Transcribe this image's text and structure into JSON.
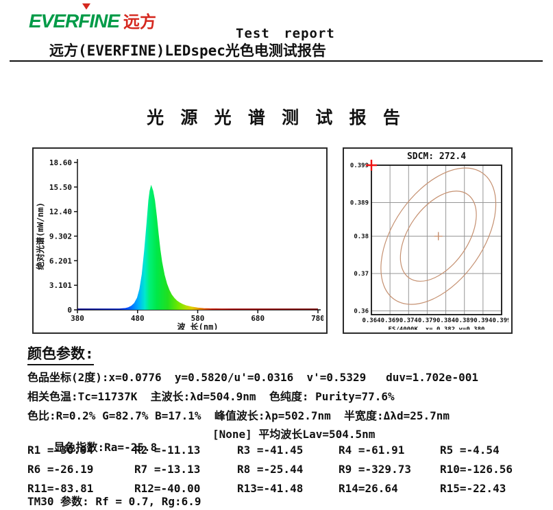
{
  "header": {
    "logo_en": "EVERFINE",
    "logo_cn": "远方",
    "test_report": "Test report",
    "subtitle": "远方(EVERFINE)LEDspec光色电测试报告"
  },
  "main_title": "光 源 光 谱 测 试 报 告",
  "chart_data": [
    {
      "type": "area",
      "title": "",
      "xlabel": "波 长(nm)",
      "ylabel": "绝对光谱(mW/nm)",
      "xlim": [
        380,
        780
      ],
      "ylim": [
        0,
        18.6
      ],
      "x_ticks": [
        "380",
        "480",
        "580",
        "680",
        "780"
      ],
      "y_ticks": [
        "0",
        "3.101",
        "6.201",
        "9.302",
        "12.40",
        "15.50",
        "18.60"
      ],
      "grid": "off",
      "peak": {
        "lambda_p_nm": 502.7,
        "value_mW_nm": 15.5,
        "fwhm_nm": 25.7
      },
      "series": [
        {
          "name": "绝对光谱",
          "x": [
            380,
            420,
            450,
            460,
            465,
            470,
            475,
            480,
            484,
            488,
            492,
            496,
            499,
            501,
            502.7,
            505,
            508,
            511,
            514,
            517,
            520,
            524,
            528,
            532,
            536,
            540,
            545,
            550,
            555,
            560,
            570,
            580,
            590,
            600,
            620,
            650,
            700,
            780
          ],
          "y": [
            0.05,
            0.05,
            0.08,
            0.15,
            0.25,
            0.45,
            0.8,
            1.5,
            2.6,
            4.5,
            7.5,
            11.0,
            13.8,
            15.0,
            15.5,
            15.0,
            13.8,
            11.8,
            9.6,
            7.6,
            6.0,
            4.4,
            3.3,
            2.5,
            1.9,
            1.5,
            1.1,
            0.85,
            0.65,
            0.5,
            0.32,
            0.2,
            0.13,
            0.1,
            0.07,
            0.06,
            0.05,
            0.04
          ]
        }
      ],
      "gradient": [
        {
          "at": 380,
          "c": "#000080"
        },
        {
          "at": 450,
          "c": "#0020C0"
        },
        {
          "at": 464,
          "c": "#0050FF"
        },
        {
          "at": 480,
          "c": "#00A8FF"
        },
        {
          "at": 492,
          "c": "#00E8D0"
        },
        {
          "at": 500,
          "c": "#00F078"
        },
        {
          "at": 512,
          "c": "#00E848"
        },
        {
          "at": 530,
          "c": "#20E020"
        },
        {
          "at": 548,
          "c": "#70E800"
        },
        {
          "at": 560,
          "c": "#B0E000"
        },
        {
          "at": 570,
          "c": "#E0D000"
        },
        {
          "at": 580,
          "c": "#E8A000"
        },
        {
          "at": 592,
          "c": "#E05000"
        },
        {
          "at": 604,
          "c": "#C81800"
        },
        {
          "at": 640,
          "c": "#A00000"
        },
        {
          "at": 780,
          "c": "#700000"
        }
      ]
    },
    {
      "type": "scatter",
      "title": "SDCM: 272.4",
      "footer": "ES/4000K, x= 0.382 y=0.380",
      "xlim": [
        0.364,
        0.399
      ],
      "ylim": [
        0.359,
        0.399
      ],
      "x_ticks": [
        "0.364",
        "0.369",
        "0.374",
        "0.379",
        "0.384",
        "0.389",
        "0.394",
        "0.399"
      ],
      "y_ticks": [
        "0.399",
        "0.389",
        "0.38",
        "0.37",
        "0.36"
      ],
      "grid": "on",
      "target": {
        "x": 0.382,
        "y": 0.38
      },
      "measured_marker": {
        "x": 0.364,
        "y": 0.399
      },
      "ellipses": [
        {
          "rx": 0.0207,
          "ry": 0.012,
          "rotation_deg": -55
        },
        {
          "rx": 0.0137,
          "ry": 0.0079,
          "rotation_deg": -55
        }
      ],
      "colors": {
        "ellipse": "#C59070",
        "grid": "#969696",
        "marker_red": "#EE1111",
        "axis": "#111111"
      }
    }
  ],
  "params": {
    "heading": "颜色参数:",
    "line_chromaticity": "色品坐标(2度):x=0.0776  y=0.5820/u'=0.0316  v'=0.5329   duv=1.702e-001",
    "line_cct": "相关色温:Tc=11737K  主波长:λd=504.9nm  色纯度: Purity=77.6%",
    "line_ratio": "色比:R=0.2% G=82.7% B=17.1%  峰值波长:λp=502.7nm  半宽度:Δλd=25.7nm",
    "line_ra": "显色指数:Ra=-25.8",
    "line_lav": "[None] 平均波长Lav=504.5nm",
    "r_values": [
      "R1 =-30.94",
      "R2 =-11.13",
      "R3 =-41.45",
      "R4 =-61.91",
      "R5 =-4.54",
      "R6 =-26.19",
      "R7 =-13.13",
      "R8 =-25.44",
      "R9 =-329.73",
      "R10=-126.56",
      "R11=-83.81",
      "R12=-40.00",
      "R13=-41.48",
      "R14=26.64",
      "R15=-22.43"
    ],
    "tm30": "TM30 参数: Rf = 0.7, Rg:6.9"
  }
}
